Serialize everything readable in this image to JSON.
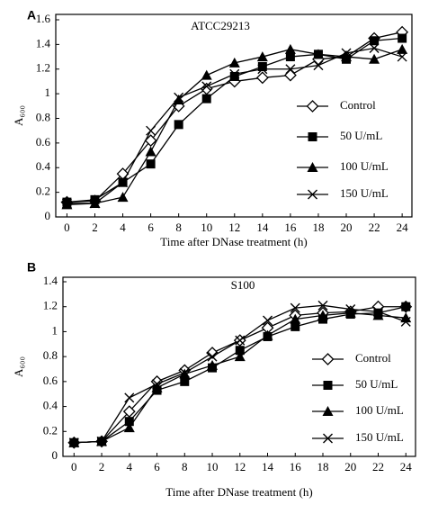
{
  "chart_data": [
    {
      "type": "line",
      "panel_label": "A",
      "title": "ATCC29213",
      "xlabel": "Time after DNase treatment (h)",
      "ylabel": "A₆₀₀",
      "x": [
        0,
        2,
        4,
        6,
        8,
        10,
        12,
        14,
        16,
        18,
        20,
        22,
        24
      ],
      "xlim": [
        -0.8,
        24.7
      ],
      "xticks": [
        0,
        2,
        4,
        6,
        8,
        10,
        12,
        14,
        16,
        18,
        20,
        22,
        24
      ],
      "ylim": [
        0,
        1.6
      ],
      "yticks": [
        0,
        0.2,
        0.4,
        0.6,
        0.8,
        1.0,
        1.2,
        1.4,
        1.6
      ],
      "series": [
        {
          "name": "Control",
          "color": "#000000",
          "marker": "diamond",
          "values": [
            0.12,
            0.13,
            0.35,
            0.62,
            0.9,
            1.04,
            1.1,
            1.13,
            1.15,
            1.28,
            1.3,
            1.45,
            1.5
          ]
        },
        {
          "name": "50 U/mL",
          "color": "#000000",
          "marker": "square",
          "values": [
            0.12,
            0.14,
            0.28,
            0.43,
            0.75,
            0.96,
            1.14,
            1.22,
            1.3,
            1.32,
            1.28,
            1.43,
            1.45
          ]
        },
        {
          "name": "100 U/mL",
          "color": "#000000",
          "marker": "triangle",
          "values": [
            0.1,
            0.11,
            0.16,
            0.53,
            0.95,
            1.15,
            1.25,
            1.3,
            1.36,
            1.32,
            1.3,
            1.28,
            1.36
          ]
        },
        {
          "name": "150 U/mL",
          "color": "#000000",
          "marker": "x",
          "values": [
            0.11,
            0.11,
            0.28,
            0.7,
            0.97,
            1.06,
            1.16,
            1.2,
            1.2,
            1.23,
            1.33,
            1.37,
            1.3
          ]
        }
      ]
    },
    {
      "type": "line",
      "panel_label": "B",
      "title": "S100",
      "xlabel": "Time after DNase treatment (h)",
      "ylabel": "A₆₀₀",
      "x": [
        0,
        2,
        4,
        6,
        8,
        10,
        12,
        14,
        16,
        18,
        20,
        22,
        24
      ],
      "xlim": [
        -0.8,
        24.7
      ],
      "xticks": [
        0,
        2,
        4,
        6,
        8,
        10,
        12,
        14,
        16,
        18,
        20,
        22,
        24
      ],
      "ylim": [
        0,
        1.4
      ],
      "yticks": [
        0,
        0.2,
        0.4,
        0.6,
        0.8,
        1.0,
        1.2,
        1.4
      ],
      "series": [
        {
          "name": "Control",
          "color": "#000000",
          "marker": "diamond",
          "values": [
            0.11,
            0.12,
            0.36,
            0.6,
            0.69,
            0.83,
            0.93,
            1.03,
            1.13,
            1.15,
            1.16,
            1.2,
            1.2
          ]
        },
        {
          "name": "50 U/mL",
          "color": "#000000",
          "marker": "square",
          "values": [
            0.11,
            0.12,
            0.28,
            0.53,
            0.6,
            0.71,
            0.85,
            0.96,
            1.04,
            1.1,
            1.14,
            1.15,
            1.2
          ]
        },
        {
          "name": "100 U/mL",
          "color": "#000000",
          "marker": "triangle",
          "values": [
            0.11,
            0.12,
            0.23,
            0.55,
            0.66,
            0.73,
            0.8,
            0.97,
            1.1,
            1.13,
            1.15,
            1.13,
            1.11
          ]
        },
        {
          "name": "150 U/mL",
          "color": "#000000",
          "marker": "x",
          "values": [
            0.11,
            0.12,
            0.47,
            0.58,
            0.67,
            0.8,
            0.93,
            1.09,
            1.19,
            1.21,
            1.18,
            1.16,
            1.08
          ]
        }
      ]
    }
  ]
}
